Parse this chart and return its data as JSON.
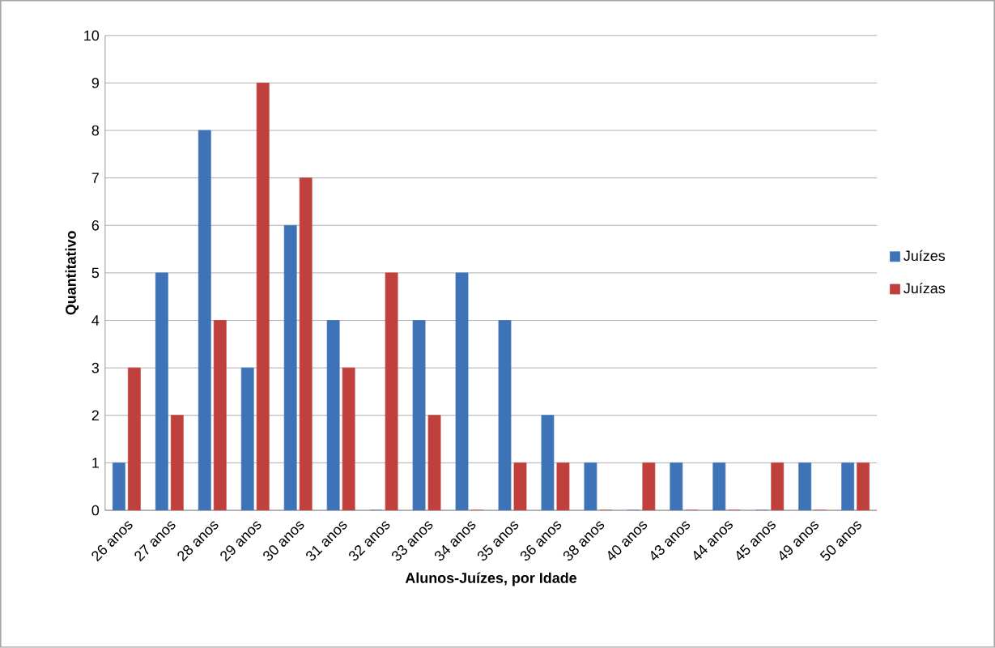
{
  "chart_data": {
    "type": "bar",
    "xlabel": "Alunos-Juízes, por Idade",
    "ylabel": "Quantitativo",
    "categories": [
      "26 anos",
      "27 anos",
      "28 anos",
      "29 anos",
      "30 anos",
      "31 anos",
      "32 anos",
      "33 anos",
      "34 anos",
      "35 anos",
      "36 anos",
      "38 anos",
      "40 anos",
      "43 anos",
      "44 anos",
      "45 anos",
      "49 anos",
      "50 anos"
    ],
    "series": [
      {
        "name": "Juízes",
        "color": "#3f73b8",
        "values": [
          1,
          5,
          8,
          3,
          6,
          4,
          0,
          4,
          5,
          4,
          2,
          1,
          0,
          1,
          1,
          0,
          1,
          1
        ]
      },
      {
        "name": "Juízas",
        "color": "#c0403d",
        "values": [
          3,
          2,
          4,
          9,
          7,
          3,
          5,
          2,
          0,
          1,
          1,
          0,
          1,
          0,
          0,
          1,
          0,
          1
        ]
      }
    ],
    "ylim": [
      0,
      10
    ],
    "yticks": [
      0,
      1,
      2,
      3,
      4,
      5,
      6,
      7,
      8,
      9,
      10
    ],
    "grid": "y",
    "legend": "right"
  }
}
